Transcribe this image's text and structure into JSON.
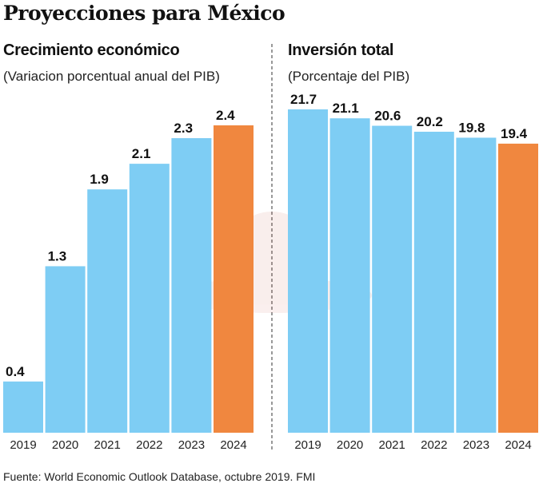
{
  "title": "Proyecciones para México",
  "footer": "Fuente: World Economic Outlook Database, octubre 2019. FMI",
  "colors": {
    "bar": "#7ecdf4",
    "highlight": "#f0873f"
  },
  "chart_data": [
    {
      "type": "bar",
      "title": "Crecimiento económico",
      "subtitle": "(Variacion porcentual anual del PIB)",
      "categories": [
        "2019",
        "2020",
        "2021",
        "2022",
        "2023",
        "2024"
      ],
      "values": [
        0.4,
        1.3,
        1.9,
        2.1,
        2.3,
        2.4
      ],
      "labels": [
        "0.4",
        "1.3",
        "1.9",
        "2.1",
        "2.3",
        "2.4"
      ],
      "highlight_index": 5,
      "ylim": [
        0,
        2.5
      ],
      "grid": false
    },
    {
      "type": "bar",
      "title": "Inversión total",
      "subtitle": "(Porcentaje del PIB)",
      "categories": [
        "2019",
        "2020",
        "2021",
        "2022",
        "2023",
        "2024"
      ],
      "values": [
        21.7,
        21.1,
        20.6,
        20.2,
        19.8,
        19.4
      ],
      "labels": [
        "21.7",
        "21.1",
        "20.6",
        "20.2",
        "19.8",
        "19.4"
      ],
      "highlight_index": 5,
      "ylim": [
        0,
        22
      ],
      "grid": false
    }
  ]
}
